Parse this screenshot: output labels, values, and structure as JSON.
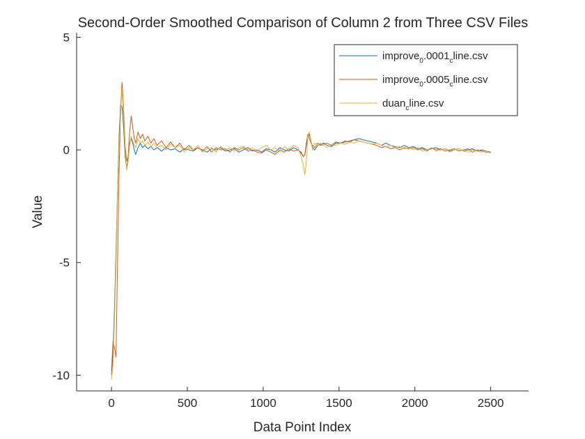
{
  "chart_data": {
    "type": "line",
    "title": "Second-Order Smoothed Comparison of Column 2 from Three CSV Files",
    "xlabel": "Data Point Index",
    "ylabel": "Value",
    "xlim": [
      -230,
      2750
    ],
    "ylim": [
      -10.7,
      5.2
    ],
    "xticks": [
      {
        "value": 0,
        "label": "0"
      },
      {
        "value": 500,
        "label": "500"
      },
      {
        "value": 1000,
        "label": "1000"
      },
      {
        "value": 1500,
        "label": "1500"
      },
      {
        "value": 2000,
        "label": "2000"
      },
      {
        "value": 2500,
        "label": "2500"
      }
    ],
    "yticks": [
      {
        "value": 5,
        "label": "5"
      },
      {
        "value": 0,
        "label": "0"
      },
      {
        "value": -5,
        "label": "-5"
      },
      {
        "value": -10,
        "label": "-10"
      }
    ],
    "grid": false,
    "legend_position": "top-right",
    "series": [
      {
        "name": "improve_0.0001_cline.csv",
        "legend": {
          "a": "improve",
          "b": "0",
          "c": ".0001",
          "d": "c",
          "e": "line.csv"
        },
        "color": "#0072BD",
        "x": [
          0,
          10,
          20,
          30,
          40,
          50,
          60,
          70,
          80,
          90,
          100,
          110,
          120,
          130,
          140,
          150,
          160,
          175,
          190,
          205,
          220,
          240,
          260,
          280,
          300,
          330,
          360,
          390,
          420,
          450,
          480,
          510,
          540,
          570,
          600,
          630,
          660,
          690,
          720,
          750,
          780,
          810,
          840,
          870,
          900,
          930,
          960,
          990,
          1020,
          1050,
          1080,
          1110,
          1140,
          1170,
          1200,
          1230,
          1250,
          1265,
          1275,
          1285,
          1295,
          1305,
          1315,
          1325,
          1340,
          1360,
          1380,
          1400,
          1420,
          1450,
          1480,
          1510,
          1540,
          1570,
          1600,
          1630,
          1660,
          1690,
          1720,
          1750,
          1780,
          1810,
          1840,
          1870,
          1900,
          1930,
          1960,
          1990,
          2020,
          2050,
          2080,
          2110,
          2140,
          2170,
          2200,
          2230,
          2260,
          2290,
          2320,
          2350,
          2380,
          2410,
          2440,
          2470,
          2500
        ],
        "y": [
          -10.0,
          -9.0,
          -7.0,
          -4.5,
          -1.8,
          0.6,
          2.0,
          1.9,
          1.0,
          -0.3,
          -0.8,
          -0.4,
          0.3,
          0.5,
          0.3,
          0.0,
          -0.2,
          0.1,
          0.3,
          0.1,
          0.2,
          0.05,
          0.15,
          0.0,
          0.1,
          -0.05,
          0.1,
          0.0,
          0.05,
          -0.1,
          0.05,
          0.0,
          -0.05,
          0.1,
          0.0,
          -0.1,
          0.05,
          0.0,
          0.1,
          -0.05,
          0.0,
          0.05,
          -0.1,
          0.0,
          0.1,
          -0.05,
          0.0,
          -0.1,
          0.05,
          0.0,
          -0.1,
          0.1,
          0.0,
          -0.05,
          0.1,
          0.0,
          -0.1,
          -0.3,
          -0.2,
          0.2,
          0.6,
          0.7,
          0.4,
          0.1,
          0.0,
          0.2,
          0.25,
          0.3,
          0.2,
          0.15,
          0.3,
          0.3,
          0.35,
          0.4,
          0.45,
          0.5,
          0.45,
          0.4,
          0.35,
          0.3,
          0.2,
          0.3,
          0.2,
          0.15,
          0.1,
          0.2,
          0.1,
          0.15,
          0.05,
          0.1,
          0.0,
          0.05,
          0.1,
          0.0,
          0.05,
          -0.05,
          0.0,
          0.05,
          -0.05,
          0.0,
          0.05,
          -0.05,
          0.0,
          -0.05,
          -0.1
        ]
      },
      {
        "name": "improve_0.0005_cline.csv",
        "legend": {
          "a": "improve",
          "b": "0",
          "c": ".0005",
          "d": "c",
          "e": "line.csv"
        },
        "color": "#D95319",
        "x": [
          0,
          10,
          20,
          30,
          40,
          50,
          60,
          70,
          80,
          90,
          100,
          110,
          120,
          130,
          140,
          150,
          160,
          175,
          190,
          205,
          220,
          240,
          260,
          280,
          300,
          330,
          360,
          390,
          420,
          450,
          480,
          510,
          540,
          570,
          600,
          630,
          660,
          690,
          720,
          750,
          780,
          810,
          840,
          870,
          900,
          930,
          960,
          990,
          1020,
          1050,
          1080,
          1110,
          1140,
          1170,
          1200,
          1230,
          1250,
          1265,
          1275,
          1285,
          1295,
          1305,
          1315,
          1325,
          1340,
          1360,
          1380,
          1400,
          1420,
          1450,
          1480,
          1510,
          1540,
          1570,
          1600,
          1630,
          1660,
          1690,
          1720,
          1750,
          1780,
          1810,
          1840,
          1870,
          1900,
          1930,
          1960,
          1990,
          2020,
          2050,
          2080,
          2110,
          2140,
          2170,
          2200,
          2230,
          2260,
          2290,
          2320,
          2350,
          2380,
          2410,
          2440,
          2470,
          2500
        ],
        "y": [
          -9.8,
          -8.5,
          -8.8,
          -9.2,
          -5.0,
          -1.0,
          1.8,
          3.0,
          1.8,
          0.2,
          -0.5,
          -0.3,
          0.8,
          1.5,
          1.0,
          0.5,
          0.3,
          0.8,
          0.5,
          0.7,
          0.4,
          0.6,
          0.3,
          0.5,
          0.2,
          0.4,
          0.1,
          0.35,
          0.1,
          0.3,
          0.0,
          0.2,
          0.0,
          0.1,
          -0.05,
          0.15,
          -0.1,
          0.1,
          0.0,
          0.05,
          -0.1,
          0.1,
          0.0,
          0.1,
          -0.05,
          0.0,
          -0.1,
          -0.15,
          0.0,
          -0.1,
          -0.2,
          0.0,
          -0.1,
          0.05,
          -0.05,
          0.0,
          -0.15,
          -0.3,
          -0.2,
          0.3,
          0.7,
          0.5,
          0.3,
          0.2,
          0.1,
          0.3,
          0.2,
          0.25,
          0.3,
          0.2,
          0.35,
          0.3,
          0.4,
          0.35,
          0.45,
          0.4,
          0.35,
          0.3,
          0.25,
          0.2,
          0.1,
          0.15,
          0.05,
          0.1,
          0.0,
          0.1,
          0.05,
          0.1,
          0.0,
          0.05,
          -0.05,
          0.1,
          0.0,
          0.05,
          -0.05,
          0.0,
          0.05,
          -0.05,
          0.0,
          0.05,
          -0.1,
          0.0,
          -0.05,
          -0.1,
          -0.1
        ]
      },
      {
        "name": "duan_cline.csv",
        "legend": {
          "a": "duan",
          "b": "",
          "c": "",
          "d": "c",
          "e": "line.csv"
        },
        "color": "#EDB120",
        "x": [
          0,
          10,
          20,
          30,
          40,
          50,
          60,
          70,
          80,
          90,
          100,
          110,
          120,
          130,
          140,
          150,
          160,
          175,
          190,
          205,
          220,
          240,
          260,
          280,
          300,
          330,
          360,
          390,
          420,
          450,
          480,
          510,
          540,
          570,
          600,
          630,
          660,
          690,
          720,
          750,
          780,
          810,
          840,
          870,
          900,
          930,
          960,
          990,
          1020,
          1050,
          1080,
          1110,
          1140,
          1170,
          1200,
          1230,
          1250,
          1265,
          1275,
          1285,
          1295,
          1305,
          1315,
          1325,
          1340,
          1360,
          1380,
          1400,
          1420,
          1450,
          1480,
          1510,
          1540,
          1570,
          1600,
          1630,
          1660,
          1690,
          1720,
          1750,
          1780,
          1810,
          1840,
          1870,
          1900,
          1930,
          1960,
          1990,
          2020,
          2050,
          2080,
          2110,
          2140,
          2170,
          2200,
          2230,
          2260,
          2290,
          2320,
          2350,
          2380,
          2410,
          2440,
          2470,
          2500
        ],
        "y": [
          -10.2,
          -9.5,
          -7.5,
          -5.0,
          -2.0,
          0.3,
          1.6,
          2.7,
          1.5,
          0.0,
          -0.9,
          -0.5,
          0.2,
          0.6,
          0.4,
          0.2,
          0.1,
          0.5,
          0.3,
          0.4,
          0.2,
          0.35,
          0.15,
          0.3,
          0.1,
          0.2,
          0.0,
          0.25,
          0.1,
          0.2,
          -0.1,
          0.1,
          0.0,
          0.2,
          -0.1,
          0.05,
          0.1,
          -0.1,
          0.15,
          0.0,
          0.1,
          -0.05,
          0.1,
          0.15,
          0.0,
          0.1,
          -0.05,
          0.1,
          0.2,
          0.0,
          0.1,
          -0.1,
          0.15,
          0.0,
          0.2,
          0.1,
          -0.3,
          -0.7,
          -1.1,
          -0.5,
          0.6,
          0.8,
          0.4,
          0.0,
          0.3,
          0.2,
          0.3,
          0.2,
          0.1,
          0.25,
          0.2,
          0.3,
          0.25,
          0.35,
          0.3,
          0.4,
          0.35,
          0.3,
          0.25,
          0.3,
          0.2,
          0.15,
          0.2,
          0.1,
          0.15,
          0.05,
          0.1,
          0.0,
          0.1,
          -0.05,
          0.0,
          0.1,
          -0.05,
          0.0,
          0.05,
          -0.1,
          0.0,
          0.05,
          -0.05,
          -0.1,
          0.0,
          -0.05,
          -0.1,
          -0.05,
          -0.15
        ]
      }
    ]
  }
}
